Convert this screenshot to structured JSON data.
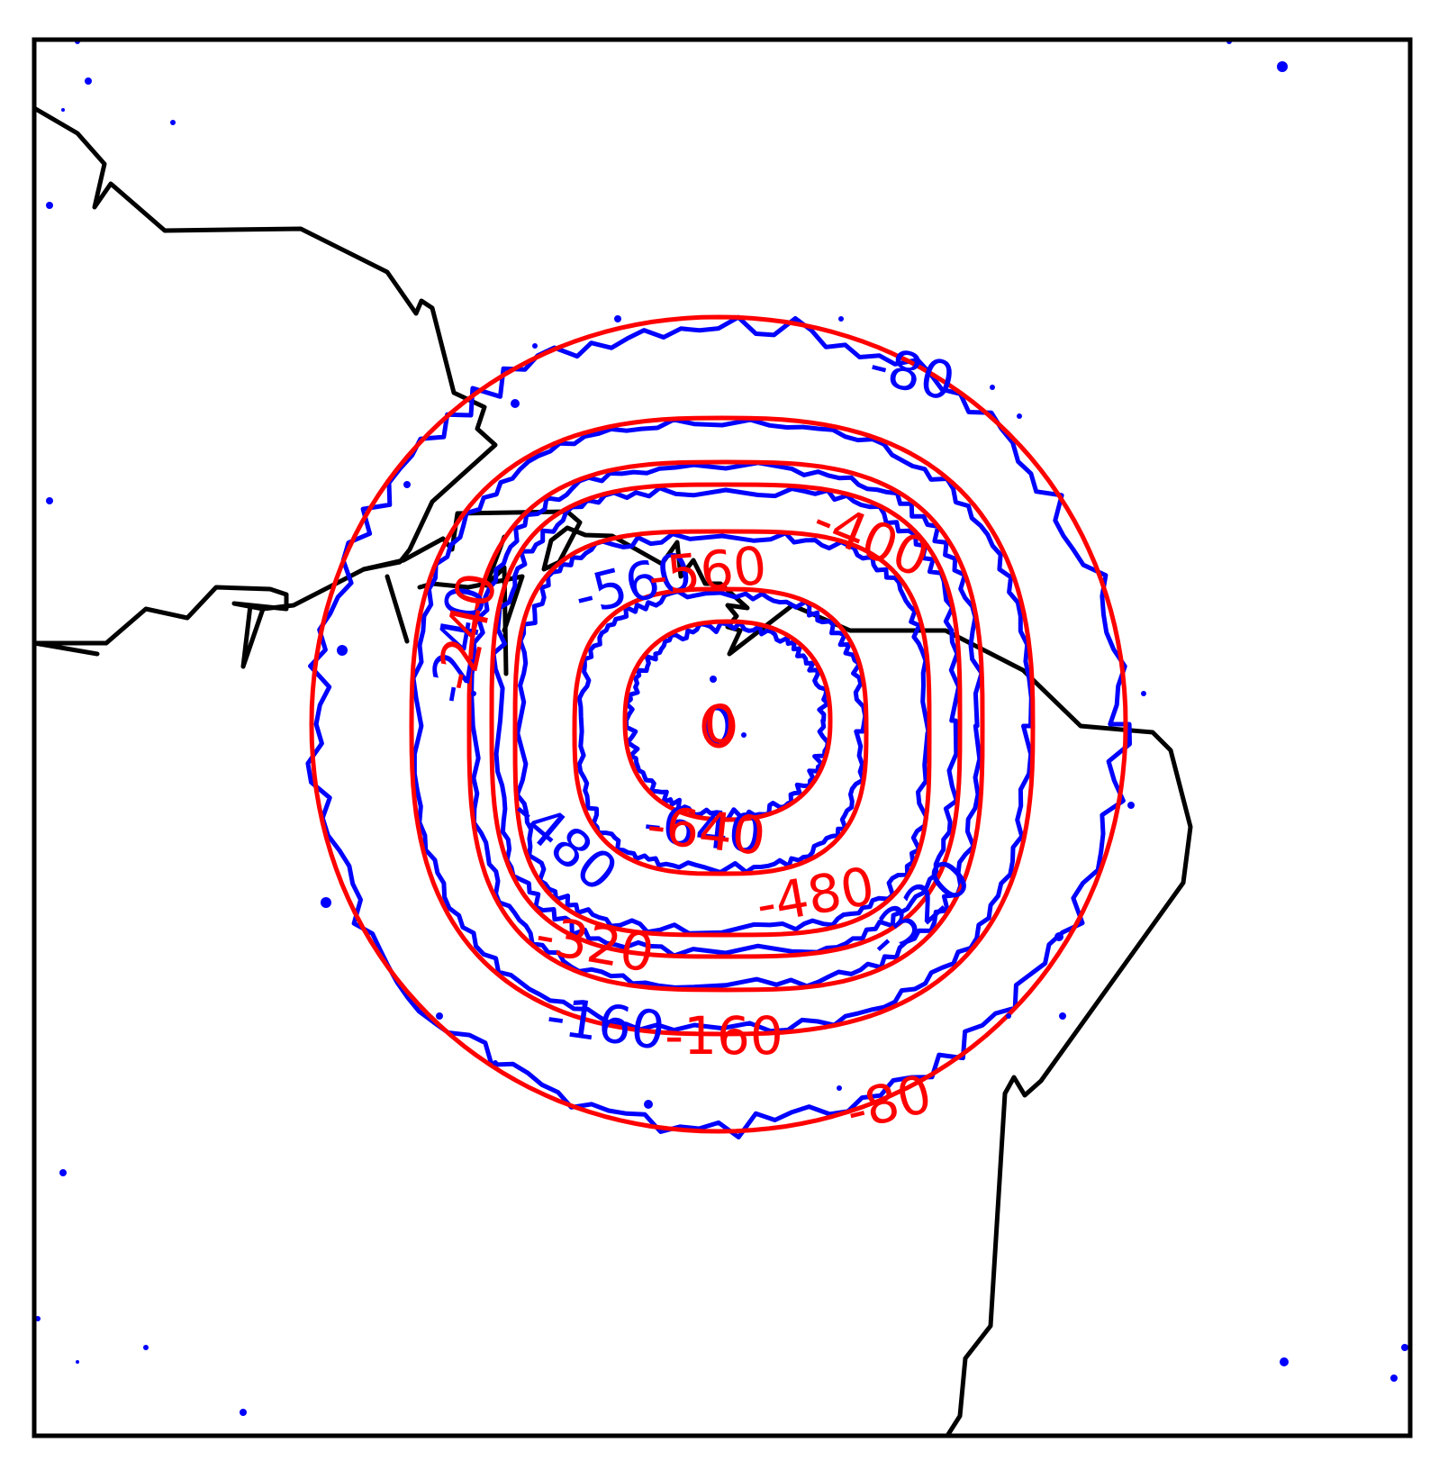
{
  "map": {
    "colors": {
      "frame": "#000000",
      "coastline": "#000000",
      "field_a": "#0000ff",
      "field_b": "#ff0000"
    },
    "blue_labels": {
      "l80": "-80",
      "l160": "-160",
      "l240": "-240",
      "l320": "-320",
      "l480": "-480",
      "l560": "-560",
      "l640": "-640"
    },
    "red_labels": {
      "l80": "-80",
      "l160": "-160",
      "l240": "-240",
      "l320": "-320",
      "l400": "-400",
      "l480": "-480",
      "l560": "-560",
      "l640": "-640",
      "l0": "0"
    }
  }
}
